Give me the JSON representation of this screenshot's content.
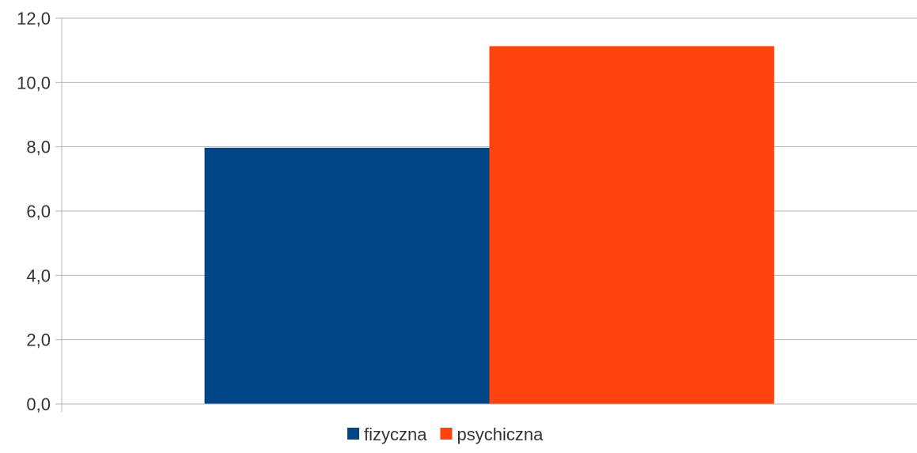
{
  "chart_data": {
    "type": "bar",
    "categories": [
      ""
    ],
    "series": [
      {
        "name": "fizyczna",
        "values": [
          7.97
        ],
        "color": "#004586"
      },
      {
        "name": "psychiczna",
        "values": [
          11.13
        ],
        "color": "#ff420e"
      }
    ],
    "title": "",
    "xlabel": "",
    "ylabel": "",
    "ylim": [
      0,
      12
    ],
    "yticks": [
      "0,0",
      "2,0",
      "4,0",
      "6,0",
      "8,0",
      "10,0",
      "12,0"
    ],
    "ytick_values": [
      0,
      2,
      4,
      6,
      8,
      10,
      12
    ],
    "grid": true,
    "gridline_color": "#b3b3b3",
    "legend_position": "bottom"
  }
}
